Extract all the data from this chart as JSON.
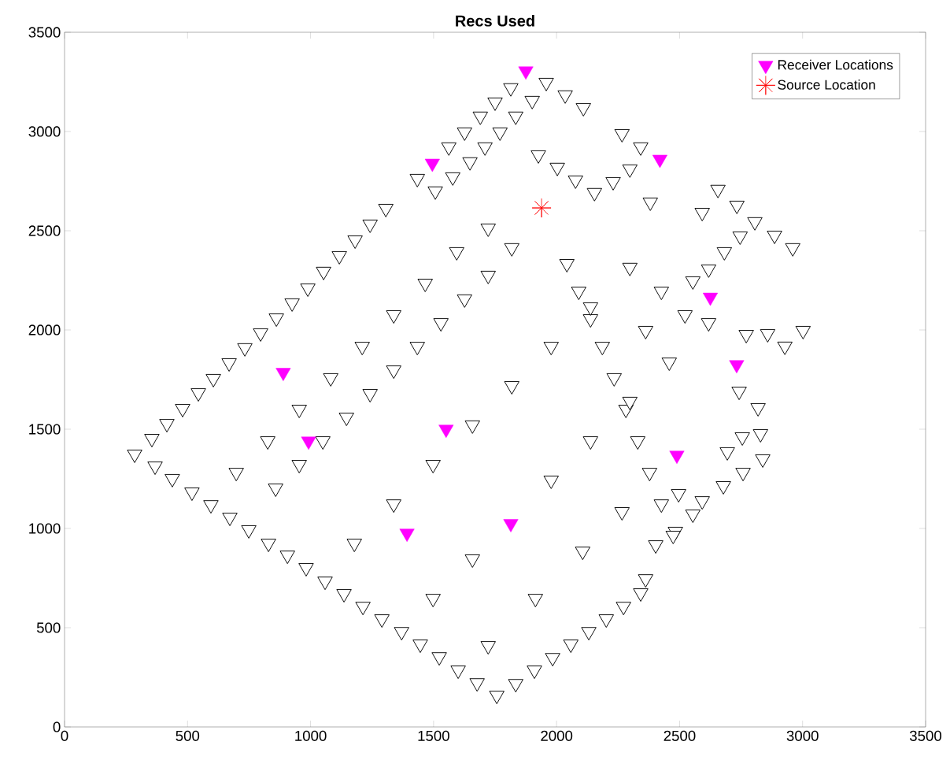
{
  "chart_data": {
    "type": "scatter",
    "title": "Recs Used",
    "xlim": [
      0,
      3500
    ],
    "ylim": [
      0,
      3500
    ],
    "xticks": [
      0,
      500,
      1000,
      1500,
      2000,
      2500,
      3000,
      3500
    ],
    "yticks": [
      0,
      500,
      1000,
      1500,
      2000,
      2500,
      3000,
      3500
    ],
    "grid": false,
    "legend": "top right",
    "series": [
      {
        "color": "#000000",
        "marker": "triangle",
        "x": [
          285,
          368,
          438,
          518,
          595,
          672,
          749,
          829,
          906,
          982,
          1059,
          1136,
          1213,
          1290,
          1370,
          1446,
          1523,
          1600,
          1677,
          1757,
          1834,
          1910,
          1984,
          2058,
          2131,
          2202,
          2272,
          2342,
          2362,
          2403,
          355,
          416,
          480,
          544,
          605,
          669,
          733,
          797,
          861,
          925,
          989,
          1053,
          1117,
          1181,
          1242,
          1306,
          1434,
          1562,
          1626,
          1690,
          1750,
          1814,
          1958,
          2035,
          2109,
          1507,
          1578,
          1648,
          1709,
          1770,
          1834,
          1901,
          1926,
          2003,
          2077,
          2154,
          2230,
          2298,
          2266,
          2342,
          2381,
          2656,
          2592,
          2733,
          2806,
          2886,
          2960,
          2746,
          2682,
          2618,
          2554,
          3002,
          2928,
          2858,
          2771,
          2742,
          2819,
          2829,
          2755,
          2694,
          2838,
          2758,
          2678,
          2592,
          2496,
          2554,
          2483,
          2042,
          2090,
          2138,
          2186,
          2234,
          2282,
          2330,
          2378,
          2426,
          2474,
          858,
          954,
          1050,
          1146,
          1242,
          1338,
          1434,
          1530,
          1626,
          1722,
          1818,
          698,
          826,
          954,
          1082,
          1210,
          1338,
          1466,
          1594,
          1722,
          1178,
          1338,
          1498,
          1658,
          1818,
          1978,
          2138,
          1498,
          1658,
          1818,
          1978,
          2138,
          2298,
          2458,
          2618,
          1722,
          1914,
          2106,
          2266,
          2298,
          2426,
          2522,
          2362
        ],
        "values": [
          1374,
          1314,
          1251,
          1183,
          1119,
          1056,
          993,
          925,
          865,
          802,
          734,
          671,
          607,
          544,
          480,
          417,
          353,
          286,
          222,
          159,
          218,
          286,
          349,
          417,
          480,
          544,
          607,
          675,
          746,
          917,
          1453,
          1528,
          1604,
          1683,
          1755,
          1834,
          1910,
          1985,
          2060,
          2136,
          2211,
          2295,
          2374,
          2453,
          2533,
          2612,
          2763,
          2922,
          2997,
          3077,
          3148,
          3220,
          3247,
          3184,
          3120,
          2700,
          2771,
          2847,
          2922,
          2997,
          3077,
          3156,
          2882,
          2819,
          2755,
          2692,
          2747,
          2811,
          2989,
          2922,
          2644,
          2708,
          2592,
          2628,
          2545,
          2477,
          2414,
          2473,
          2394,
          2307,
          2247,
          1997,
          1918,
          1981,
          1977,
          1691,
          1608,
          1477,
          1461,
          1386,
          1350,
          1282,
          1215,
          1139,
          1175,
          1072,
          985,
          2334,
          2195,
          2056,
          1917,
          1759,
          1600,
          1441,
          1282,
          1123,
          965,
          1203,
          1322,
          1441,
          1560,
          1679,
          1798,
          1917,
          2036,
          2156,
          2275,
          2414,
          1282,
          1441,
          1600,
          1759,
          1917,
          2076,
          2235,
          2394,
          2513,
          925,
          1123,
          1322,
          1521,
          1719,
          1917,
          2116,
          647,
          846,
          null,
          1243,
          1441,
          1640,
          1838,
          2036,
          409,
          647,
          885,
          1084,
          2315,
          2195,
          2076,
          1997
        ]
      },
      {
        "name": "Receiver Locations",
        "color": "#ff00ff",
        "marker": "triangle",
        "x": [
          1875,
          1495,
          2420,
          2625,
          2732,
          889,
          992,
          1551,
          2489,
          1392,
          1814
        ],
        "values": [
          3305,
          2840,
          2860,
          2165,
          1825,
          1786,
          1440,
          1500,
          1369,
          976,
          1024
        ]
      },
      {
        "name": "Source Location",
        "color": "#ff0000",
        "marker": "cross",
        "x": [
          1939
        ],
        "values": [
          2615
        ]
      }
    ]
  }
}
